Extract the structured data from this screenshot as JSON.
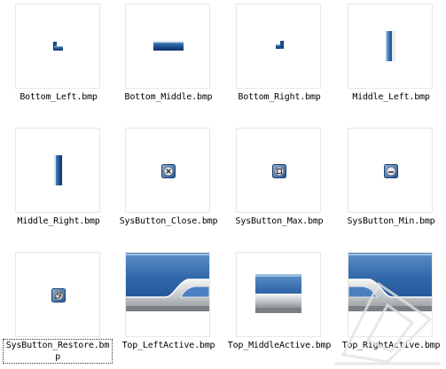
{
  "files": [
    {
      "name": "Bottom_Left.bmp",
      "icon": "bottom-left-bitmap"
    },
    {
      "name": "Bottom_Middle.bmp",
      "icon": "bottom-middle-bitmap"
    },
    {
      "name": "Bottom_Right.bmp",
      "icon": "bottom-right-bitmap"
    },
    {
      "name": "Middle_Left.bmp",
      "icon": "middle-left-bitmap"
    },
    {
      "name": "Middle_Right.bmp",
      "icon": "middle-right-bitmap"
    },
    {
      "name": "SysButton_Close.bmp",
      "icon": "close-button-bitmap"
    },
    {
      "name": "SysButton_Max.bmp",
      "icon": "maximize-button-bitmap"
    },
    {
      "name": "SysButton_Min.bmp",
      "icon": "minimize-button-bitmap"
    },
    {
      "name": "SysButton_Restore.bmp",
      "icon": "restore-button-bitmap",
      "selected": true
    },
    {
      "name": "Top_LeftActive.bmp",
      "icon": "top-left-active-bitmap"
    },
    {
      "name": "Top_MiddleActive.bmp",
      "icon": "top-middle-active-bitmap"
    },
    {
      "name": "Top_RightActive.bmp",
      "icon": "top-right-active-bitmap"
    }
  ]
}
